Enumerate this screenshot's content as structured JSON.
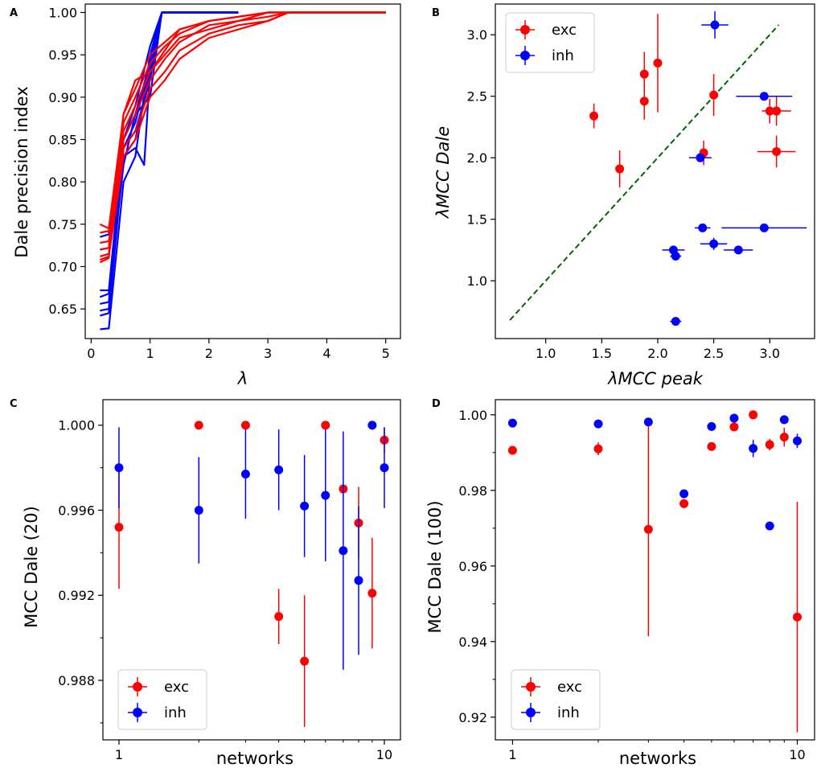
{
  "chart_data": [
    {
      "panel": "A",
      "type": "line",
      "xlabel": "λ",
      "ylabel": "Dale precision index",
      "xlim": [
        -0.1,
        5.25
      ],
      "ylim": [
        0.615,
        1.01
      ],
      "xticks": [
        0,
        1,
        2,
        3,
        4,
        5
      ],
      "xtick_labels": [
        "0",
        "1",
        "2",
        "3",
        "4",
        "5"
      ],
      "yticks": [
        0.65,
        0.7,
        0.75,
        0.8,
        0.85,
        0.9,
        0.95,
        1.0
      ],
      "ytick_labels": [
        "0.65",
        "0.70",
        "0.75",
        "0.80",
        "0.85",
        "0.90",
        "0.95",
        "1.00"
      ],
      "colors": {
        "exc": "#ff0000",
        "inh": "#0000ff"
      },
      "series": [
        {
          "name": "inh",
          "x": [
            0.15,
            0.3,
            0.55,
            0.75,
            1.0,
            1.2,
            2.5
          ],
          "y": [
            0.626,
            0.627,
            0.8,
            0.83,
            0.95,
            1.0,
            1.0
          ]
        },
        {
          "name": "inh",
          "x": [
            0.15,
            0.3,
            0.55,
            0.75,
            1.0,
            1.2,
            2.5
          ],
          "y": [
            0.648,
            0.65,
            0.83,
            0.85,
            0.93,
            1.0,
            1.0
          ]
        },
        {
          "name": "inh",
          "x": [
            0.15,
            0.3,
            0.55,
            0.75,
            1.0,
            1.2,
            2.5
          ],
          "y": [
            0.656,
            0.658,
            0.84,
            0.87,
            0.94,
            1.0,
            1.0
          ]
        },
        {
          "name": "inh",
          "x": [
            0.15,
            0.3,
            0.55,
            0.75,
            1.0,
            1.2,
            2.5
          ],
          "y": [
            0.664,
            0.668,
            0.82,
            0.88,
            0.9,
            1.0,
            1.0
          ]
        },
        {
          "name": "inh",
          "x": [
            0.15,
            0.3,
            0.55,
            0.75,
            1.0,
            1.2,
            2.5
          ],
          "y": [
            0.672,
            0.672,
            0.85,
            0.89,
            0.96,
            1.0,
            1.0
          ]
        },
        {
          "name": "inh",
          "x": [
            0.15,
            0.3,
            0.55,
            0.75,
            1.0,
            1.2,
            2.5
          ],
          "y": [
            0.72,
            0.722,
            0.84,
            0.86,
            0.92,
            1.0,
            1.0
          ]
        },
        {
          "name": "inh",
          "x": [
            0.15,
            0.3,
            0.55,
            0.75,
            1.0,
            1.2,
            2.5
          ],
          "y": [
            0.735,
            0.738,
            0.85,
            0.88,
            0.94,
            1.0,
            1.0
          ]
        },
        {
          "name": "inh",
          "x": [
            0.15,
            0.3,
            0.55,
            0.75,
            0.9,
            1.0,
            1.2,
            2.5
          ],
          "y": [
            0.642,
            0.645,
            0.83,
            0.84,
            0.82,
            0.93,
            1.0,
            1.0
          ]
        },
        {
          "name": "exc",
          "x": [
            0.15,
            0.3,
            0.55,
            0.75,
            1.0,
            1.25,
            1.5,
            2.0,
            2.5,
            3.0,
            3.35,
            5.0
          ],
          "y": [
            0.705,
            0.71,
            0.88,
            0.92,
            0.93,
            0.955,
            0.98,
            0.99,
            0.995,
            1.0,
            1.0,
            1.0
          ]
        },
        {
          "name": "exc",
          "x": [
            0.15,
            0.3,
            0.55,
            0.75,
            1.0,
            1.25,
            1.5,
            2.0,
            2.5,
            3.0,
            3.35,
            5.0
          ],
          "y": [
            0.712,
            0.715,
            0.85,
            0.88,
            0.92,
            0.945,
            0.965,
            0.985,
            0.99,
            0.995,
            1.0,
            1.0
          ]
        },
        {
          "name": "exc",
          "x": [
            0.15,
            0.3,
            0.55,
            0.75,
            1.0,
            1.25,
            1.5,
            2.0,
            2.5,
            3.0,
            3.35,
            5.0
          ],
          "y": [
            0.72,
            0.722,
            0.87,
            0.9,
            0.94,
            0.96,
            0.975,
            0.99,
            0.995,
            1.0,
            1.0,
            1.0
          ]
        },
        {
          "name": "exc",
          "x": [
            0.15,
            0.3,
            0.55,
            0.75,
            1.0,
            1.25,
            1.5,
            2.0,
            2.5,
            3.0,
            3.35,
            5.0
          ],
          "y": [
            0.728,
            0.73,
            0.84,
            0.86,
            0.91,
            0.93,
            0.955,
            0.975,
            0.985,
            0.99,
            1.0,
            1.0
          ]
        },
        {
          "name": "exc",
          "x": [
            0.15,
            0.3,
            0.55,
            0.75,
            1.0,
            1.25,
            1.5,
            2.0,
            2.5,
            3.0,
            3.35,
            5.0
          ],
          "y": [
            0.74,
            0.742,
            0.86,
            0.89,
            0.93,
            0.95,
            0.97,
            0.98,
            0.99,
            1.0,
            1.0,
            1.0
          ]
        },
        {
          "name": "exc",
          "x": [
            0.15,
            0.3,
            0.55,
            0.75,
            1.0,
            1.25,
            1.5,
            2.0,
            2.5,
            3.0,
            3.35,
            5.0
          ],
          "y": [
            0.75,
            0.745,
            0.88,
            0.91,
            0.95,
            0.965,
            0.98,
            0.99,
            0.995,
            1.0,
            1.0,
            1.0
          ]
        },
        {
          "name": "exc",
          "x": [
            0.15,
            0.3,
            0.55,
            0.75,
            1.0,
            1.25,
            1.5,
            2.0,
            2.5,
            3.0,
            3.35,
            5.0
          ],
          "y": [
            0.708,
            0.712,
            0.83,
            0.85,
            0.9,
            0.92,
            0.945,
            0.97,
            0.98,
            0.99,
            1.0,
            1.0
          ]
        }
      ]
    },
    {
      "panel": "B",
      "type": "scatter",
      "xlabel": "λMCC peak",
      "ylabel": "λMCC Dale",
      "xlim": [
        0.55,
        3.4
      ],
      "ylim": [
        0.53,
        3.25
      ],
      "xticks": [
        1.0,
        1.5,
        2.0,
        2.5,
        3.0
      ],
      "xtick_labels": [
        "1.0",
        "1.5",
        "2.0",
        "2.5",
        "3.0"
      ],
      "yticks": [
        1.0,
        1.5,
        2.0,
        2.5,
        3.0
      ],
      "ytick_labels": [
        "1.0",
        "1.5",
        "2.0",
        "2.5",
        "3.0"
      ],
      "identity_line": {
        "from": [
          0.68,
          0.68
        ],
        "to": [
          3.08,
          3.08
        ],
        "color": "#006400"
      },
      "legend": [
        {
          "label": "exc",
          "color": "#ff0000"
        },
        {
          "label": "inh",
          "color": "#0000ff"
        }
      ],
      "series": [
        {
          "name": "exc",
          "color": "#ff0000",
          "points": [
            {
              "x": 1.43,
              "y": 2.34,
              "xerr": 0.0,
              "yerr": 0.1
            },
            {
              "x": 1.66,
              "y": 1.91,
              "xerr": 0.0,
              "yerr": 0.15
            },
            {
              "x": 1.88,
              "y": 2.68,
              "xerr": 0.0,
              "yerr": 0.18
            },
            {
              "x": 1.88,
              "y": 2.46,
              "xerr": 0.0,
              "yerr": 0.15
            },
            {
              "x": 2.0,
              "y": 2.77,
              "xerr": 0.0,
              "yerr": 0.4
            },
            {
              "x": 2.41,
              "y": 2.04,
              "xerr": 0.0,
              "yerr": 0.1
            },
            {
              "x": 2.5,
              "y": 2.51,
              "xerr": 0.0,
              "yerr": 0.17
            },
            {
              "x": 3.0,
              "y": 2.38,
              "xerr": 0.0,
              "yerr": 0.1
            },
            {
              "x": 3.06,
              "y": 2.38,
              "xerr": 0.13,
              "yerr": 0.12
            },
            {
              "x": 3.06,
              "y": 2.05,
              "xerr": 0.17,
              "yerr": 0.13
            }
          ]
        },
        {
          "name": "inh",
          "color": "#0000ff",
          "points": [
            {
              "x": 2.51,
              "y": 3.08,
              "xerr": 0.12,
              "yerr": 0.11
            },
            {
              "x": 2.95,
              "y": 2.5,
              "xerr": 0.25,
              "yerr": 0.0
            },
            {
              "x": 2.38,
              "y": 2.0,
              "xerr": 0.1,
              "yerr": 0.0
            },
            {
              "x": 2.4,
              "y": 1.43,
              "xerr": 0.07,
              "yerr": 0.0
            },
            {
              "x": 2.95,
              "y": 1.43,
              "xerr": 0.38,
              "yerr": 0.0
            },
            {
              "x": 2.5,
              "y": 1.3,
              "xerr": 0.12,
              "yerr": 0.05
            },
            {
              "x": 2.72,
              "y": 1.25,
              "xerr": 0.13,
              "yerr": 0.0
            },
            {
              "x": 2.14,
              "y": 1.25,
              "xerr": 0.1,
              "yerr": 0.0
            },
            {
              "x": 2.16,
              "y": 1.2,
              "xerr": 0.05,
              "yerr": 0.0
            },
            {
              "x": 2.16,
              "y": 0.67,
              "xerr": 0.05,
              "yerr": 0.0
            }
          ]
        }
      ]
    },
    {
      "panel": "C",
      "type": "scatter",
      "xlabel": "networks",
      "ylabel": "MCC Dale (20)",
      "xscale": "log",
      "xlim": [
        0.87,
        11.5
      ],
      "ylim": [
        0.9852,
        1.0012
      ],
      "xticks": [
        1,
        10
      ],
      "xtick_labels": [
        "1",
        "10"
      ],
      "yticks": [
        0.988,
        0.992,
        0.996,
        1.0
      ],
      "ytick_labels": [
        "0.988",
        "0.992",
        "0.996",
        "1.000"
      ],
      "legend": [
        {
          "label": "exc",
          "color": "#ff0000"
        },
        {
          "label": "inh",
          "color": "#0000ff"
        }
      ],
      "series": [
        {
          "name": "exc",
          "color": "#ff0000",
          "points": [
            {
              "x": 1,
              "y": 0.9952,
              "yerr": 0.0029
            },
            {
              "x": 2,
              "y": 1.0,
              "yerr": 0.0
            },
            {
              "x": 3,
              "y": 1.0,
              "yerr": 0.0
            },
            {
              "x": 4,
              "y": 0.991,
              "yerr": 0.0013
            },
            {
              "x": 5,
              "y": 0.9889,
              "yerr": 0.0031
            },
            {
              "x": 6,
              "y": 1.0,
              "yerr": 0.0
            },
            {
              "x": 7,
              "y": 0.997,
              "yerr": 0.0
            },
            {
              "x": 8,
              "y": 0.9954,
              "yerr": 0.0017
            },
            {
              "x": 9,
              "y": 0.9921,
              "yerr": 0.0026
            },
            {
              "x": 10,
              "y": 0.9993,
              "yerr": 0.0006
            }
          ]
        },
        {
          "name": "inh",
          "color": "#0000ff",
          "points": [
            {
              "x": 1,
              "y": 0.998,
              "yerr": 0.0019
            },
            {
              "x": 2,
              "y": 0.996,
              "yerr": 0.0025
            },
            {
              "x": 3,
              "y": 0.9977,
              "yerr": 0.0021
            },
            {
              "x": 4,
              "y": 0.9979,
              "yerr": 0.0019
            },
            {
              "x": 5,
              "y": 0.9962,
              "yerr": 0.0024
            },
            {
              "x": 6,
              "y": 0.9967,
              "yerr": 0.0031
            },
            {
              "x": 7,
              "y": 0.9941,
              "yerr": 0.0056
            },
            {
              "x": 8,
              "y": 0.9927,
              "yerr": 0.0035
            },
            {
              "x": 9,
              "y": 1.0,
              "yerr": 0.0
            },
            {
              "x": 10,
              "y": 0.998,
              "yerr": 0.0019
            }
          ]
        }
      ]
    },
    {
      "panel": "D",
      "type": "scatter",
      "xlabel": "networks",
      "ylabel": "MCC Dale (100)",
      "xscale": "log",
      "xlim": [
        0.87,
        11.5
      ],
      "ylim": [
        0.914,
        1.004
      ],
      "xticks": [
        1,
        10
      ],
      "xtick_labels": [
        "1",
        "10"
      ],
      "yticks": [
        0.92,
        0.94,
        0.96,
        0.98,
        1.0
      ],
      "ytick_labels": [
        "0.92",
        "0.94",
        "0.96",
        "0.98",
        "1.00"
      ],
      "legend": [
        {
          "label": "exc",
          "color": "#ff0000"
        },
        {
          "label": "inh",
          "color": "#0000ff"
        }
      ],
      "series": [
        {
          "name": "exc",
          "color": "#ff0000",
          "points": [
            {
              "x": 1,
              "y": 0.9906,
              "yerr": 0.0
            },
            {
              "x": 2,
              "y": 0.991,
              "yerr": 0.0017
            },
            {
              "x": 3,
              "y": 0.9697,
              "yerr": 0.0283
            },
            {
              "x": 4,
              "y": 0.9765,
              "yerr": 0.0012
            },
            {
              "x": 5,
              "y": 0.9916,
              "yerr": 0.0
            },
            {
              "x": 6,
              "y": 0.9968,
              "yerr": 0.0
            },
            {
              "x": 7,
              "y": 1.0,
              "yerr": 0.0
            },
            {
              "x": 8,
              "y": 0.9921,
              "yerr": 0.0015
            },
            {
              "x": 9,
              "y": 0.9941,
              "yerr": 0.0025
            },
            {
              "x": 10,
              "y": 0.9465,
              "yerr": 0.0305
            }
          ]
        },
        {
          "name": "inh",
          "color": "#0000ff",
          "points": [
            {
              "x": 1,
              "y": 0.9978,
              "yerr": 0.0
            },
            {
              "x": 2,
              "y": 0.9976,
              "yerr": 0.0
            },
            {
              "x": 3,
              "y": 0.9981,
              "yerr": 0.0
            },
            {
              "x": 4,
              "y": 0.9791,
              "yerr": 0.0
            },
            {
              "x": 5,
              "y": 0.9969,
              "yerr": 0.0
            },
            {
              "x": 6,
              "y": 0.9991,
              "yerr": 0.0
            },
            {
              "x": 7,
              "y": 0.9911,
              "yerr": 0.0023
            },
            {
              "x": 8,
              "y": 0.9706,
              "yerr": 0.0
            },
            {
              "x": 9,
              "y": 0.9987,
              "yerr": 0.0
            },
            {
              "x": 10,
              "y": 0.9931,
              "yerr": 0.0019
            }
          ]
        }
      ]
    }
  ]
}
